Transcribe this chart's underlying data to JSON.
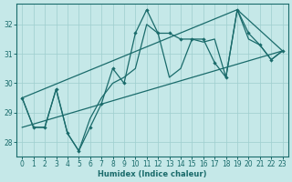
{
  "xlabel": "Humidex (Indice chaleur)",
  "background_color": "#c5e8e8",
  "grid_color": "#9ecece",
  "line_color": "#1a6b6b",
  "xlim": [
    -0.5,
    23.5
  ],
  "ylim": [
    27.5,
    32.7
  ],
  "yticks": [
    28,
    29,
    30,
    31,
    32
  ],
  "xticks": [
    0,
    1,
    2,
    3,
    4,
    5,
    6,
    7,
    8,
    9,
    10,
    11,
    12,
    13,
    14,
    15,
    16,
    17,
    18,
    19,
    20,
    21,
    22,
    23
  ],
  "line_marked": {
    "x": [
      0,
      1,
      2,
      3,
      4,
      5,
      6,
      7,
      8,
      9,
      10,
      11,
      12,
      13,
      14,
      15,
      16,
      17,
      18,
      19,
      20,
      21,
      22,
      23
    ],
    "y": [
      29.5,
      28.5,
      28.5,
      29.8,
      28.3,
      27.7,
      28.5,
      29.3,
      30.5,
      30.0,
      31.7,
      32.5,
      31.7,
      31.7,
      31.5,
      31.5,
      31.5,
      30.7,
      30.2,
      32.5,
      31.7,
      31.3,
      30.8,
      31.1
    ]
  },
  "line_zigzag": {
    "x": [
      0,
      1,
      2,
      3,
      4,
      5,
      6,
      7,
      8,
      9,
      10,
      11,
      12,
      13,
      14,
      15,
      16,
      17,
      18,
      19,
      20,
      21,
      22,
      23
    ],
    "y": [
      29.5,
      28.5,
      28.5,
      29.8,
      28.3,
      27.7,
      28.8,
      29.5,
      30.0,
      30.2,
      30.5,
      32.0,
      31.7,
      30.2,
      30.5,
      31.5,
      31.4,
      31.5,
      30.2,
      32.5,
      31.5,
      31.3,
      30.8,
      31.1
    ]
  },
  "line_trend1": {
    "x": [
      0,
      23
    ],
    "y": [
      28.5,
      31.1
    ]
  },
  "line_trend2": {
    "x": [
      0,
      19,
      23
    ],
    "y": [
      29.5,
      32.5,
      31.1
    ]
  }
}
